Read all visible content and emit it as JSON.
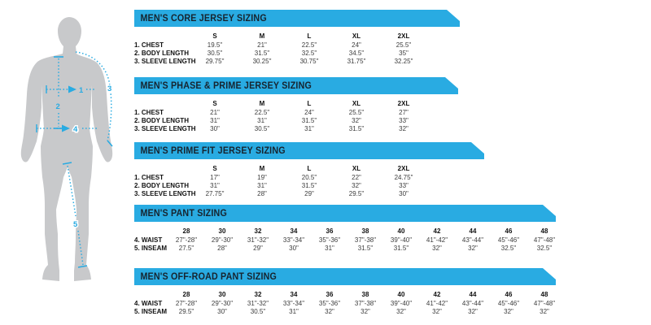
{
  "accent_color": "#29abe2",
  "silhouette_color": "#c8c9cb",
  "figure": {
    "description": "male body silhouette with numbered measurement guides",
    "labels": {
      "chest": "1",
      "body_length": "2",
      "sleeve_length": "3",
      "waist": "4",
      "inseam": "5"
    }
  },
  "tables": [
    {
      "title": "MEN'S CORE JERSEY SIZING",
      "columns": [
        "S",
        "M",
        "L",
        "XL",
        "2XL"
      ],
      "rows": [
        {
          "label": "1. CHEST",
          "values": [
            "19.5\"",
            "21\"",
            "22.5\"",
            "24\"",
            "25.5\""
          ]
        },
        {
          "label": "2. BODY LENGTH",
          "values": [
            "30.5\"",
            "31.5\"",
            "32.5\"",
            "34.5\"",
            "35\""
          ]
        },
        {
          "label": "3. SLEEVE LENGTH",
          "values": [
            "29.75\"",
            "30.25\"",
            "30.75\"",
            "31.75\"",
            "32.25\""
          ]
        }
      ]
    },
    {
      "title": "MEN'S PHASE & PRIME JERSEY SIZING",
      "columns": [
        "S",
        "M",
        "L",
        "XL",
        "2XL"
      ],
      "rows": [
        {
          "label": "1. CHEST",
          "values": [
            "21\"",
            "22.5\"",
            "24\"",
            "25.5\"",
            "27\""
          ]
        },
        {
          "label": "2. BODY LENGTH",
          "values": [
            "31\"",
            "31\"",
            "31.5\"",
            "32\"",
            "33\""
          ]
        },
        {
          "label": "3. SLEEVE LENGTH",
          "values": [
            "30\"",
            "30.5\"",
            "31\"",
            "31.5\"",
            "32\""
          ]
        }
      ]
    },
    {
      "title": "MEN'S PRIME FIT JERSEY SIZING",
      "columns": [
        "S",
        "M",
        "L",
        "XL",
        "2XL"
      ],
      "rows": [
        {
          "label": "1. CHEST",
          "values": [
            "17\"",
            "19\"",
            "20.5\"",
            "22\"",
            "24.75\""
          ]
        },
        {
          "label": "2. BODY LENGTH",
          "values": [
            "31\"",
            "31\"",
            "31.5\"",
            "32\"",
            "33\""
          ]
        },
        {
          "label": "3. SLEEVE LENGTH",
          "values": [
            "27.75\"",
            "28\"",
            "29\"",
            "29.5\"",
            "30\""
          ]
        }
      ]
    },
    {
      "title": "MEN'S PANT SIZING",
      "columns": [
        "28",
        "30",
        "32",
        "34",
        "36",
        "38",
        "40",
        "42",
        "44",
        "46",
        "48"
      ],
      "rows": [
        {
          "label": "4. WAIST",
          "values": [
            "27\"-28\"",
            "29\"-30\"",
            "31\"-32\"",
            "33\"-34\"",
            "35\"-36\"",
            "37\"-38\"",
            "39\"-40\"",
            "41\"-42\"",
            "43\"-44\"",
            "45\"-46\"",
            "47\"-48\""
          ]
        },
        {
          "label": "5. INSEAM",
          "values": [
            "27.5\"",
            "28\"",
            "29\"",
            "30\"",
            "31\"",
            "31.5\"",
            "31.5\"",
            "32\"",
            "32\"",
            "32.5\"",
            "32.5\""
          ]
        }
      ]
    },
    {
      "title": "MEN'S OFF-ROAD PANT SIZING",
      "columns": [
        "28",
        "30",
        "32",
        "34",
        "36",
        "38",
        "40",
        "42",
        "44",
        "46",
        "48"
      ],
      "rows": [
        {
          "label": "4. WAIST",
          "values": [
            "27\"-28\"",
            "29\"-30\"",
            "31\"-32\"",
            "33\"-34\"",
            "35\"-36\"",
            "37\"-38\"",
            "39\"-40\"",
            "41\"-42\"",
            "43\"-44\"",
            "45\"-46\"",
            "47\"-48\""
          ]
        },
        {
          "label": "5. INSEAM",
          "values": [
            "29.5\"",
            "30\"",
            "30.5\"",
            "31\"",
            "32\"",
            "32\"",
            "32\"",
            "32\"",
            "32\"",
            "32\"",
            "32\""
          ]
        }
      ]
    }
  ]
}
